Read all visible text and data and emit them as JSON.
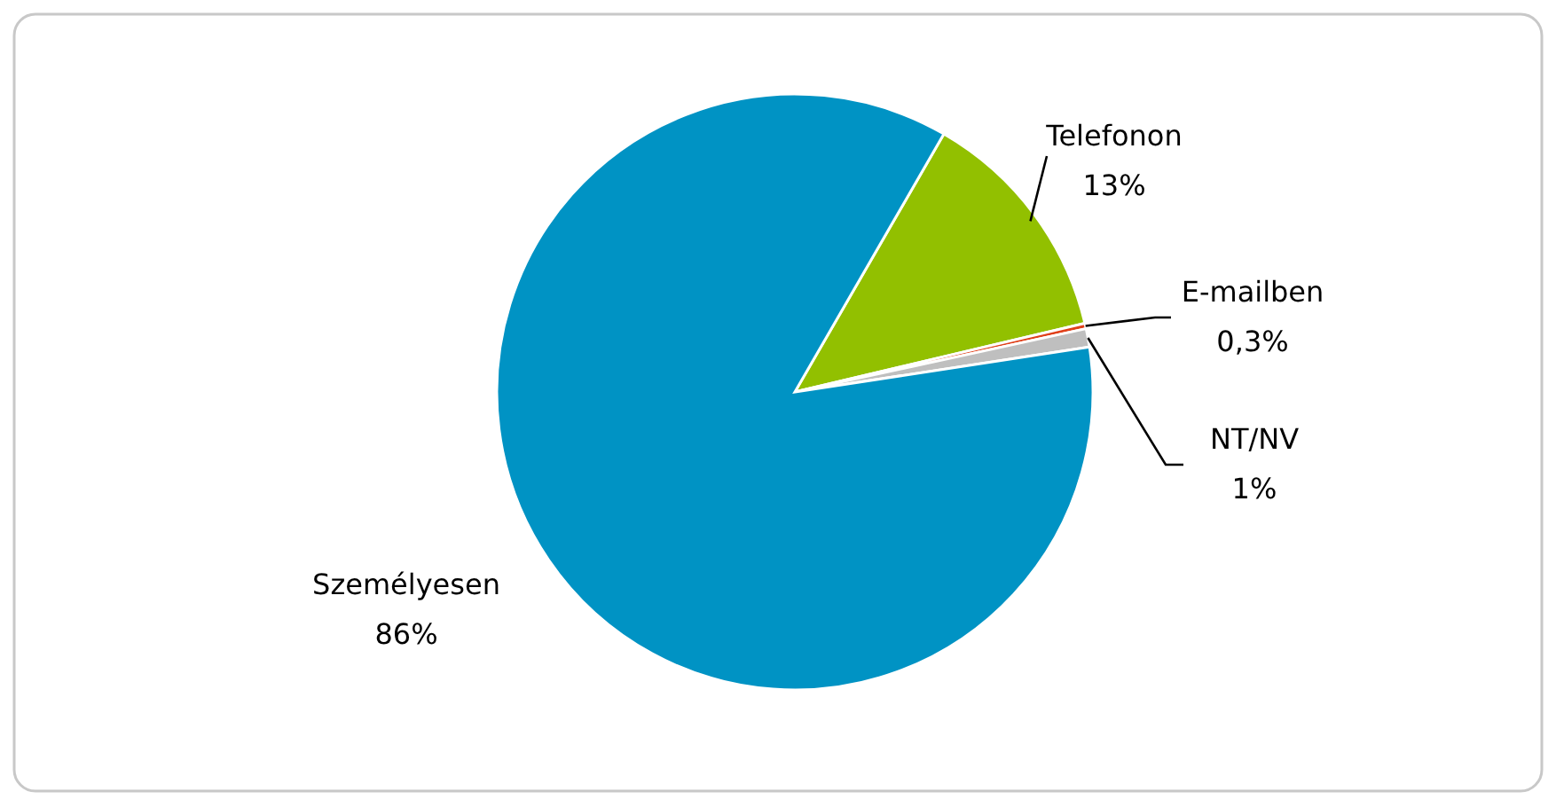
{
  "chart_data": {
    "type": "pie",
    "categories": [
      "Telefonon",
      "E-mailben",
      "NT/NV",
      "Személyesen"
    ],
    "values": [
      13,
      0.3,
      1,
      86
    ],
    "value_labels": [
      "13%",
      "0,3%",
      "1%",
      "86%"
    ],
    "colors": [
      "#92c000",
      "#e0401a",
      "#bfbfbf",
      "#0093c4"
    ]
  }
}
